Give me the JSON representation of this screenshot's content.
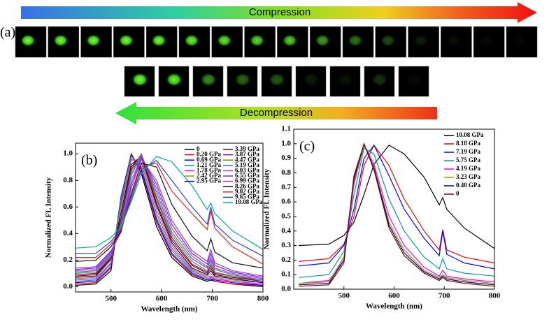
{
  "panel_a": {
    "label": "(a)",
    "top_arrow": "Compression",
    "bottom_arrow": "Decompression"
  },
  "chart_data": [
    {
      "type": "line",
      "panel_label": "(b)",
      "xlabel": "Wavelength (nm)",
      "ylabel": "Normalized FL Intensity",
      "xlim": [
        430,
        800
      ],
      "xticks": [
        500,
        600,
        700,
        800
      ],
      "ylim": [
        -0.04,
        1.08
      ],
      "yticks": [
        {
          "value": 0,
          "label": "0.0"
        },
        0.2,
        0.4,
        0.6,
        0.8,
        {
          "value": 1,
          "label": "1.0"
        }
      ],
      "legend": "upper right",
      "legend_columns": 2,
      "x": [
        430,
        470,
        500,
        520,
        540,
        560,
        590,
        620,
        660,
        690,
        697,
        705,
        740,
        800
      ],
      "series": [
        {
          "name": "0",
          "color": "#000000",
          "values": [
            0.01,
            0.02,
            0.12,
            0.65,
            1.0,
            0.85,
            0.45,
            0.22,
            0.08,
            0.04,
            0.05,
            0.04,
            0.02,
            0.0
          ]
        },
        {
          "name": "0.20 GPa",
          "color": "#ff0000",
          "values": [
            0.02,
            0.03,
            0.14,
            0.68,
            1.0,
            0.87,
            0.48,
            0.24,
            0.09,
            0.05,
            0.06,
            0.04,
            0.02,
            0.01
          ]
        },
        {
          "name": "0.69 GPa",
          "color": "#0000ff",
          "values": [
            0.03,
            0.04,
            0.15,
            0.68,
            0.99,
            0.88,
            0.5,
            0.25,
            0.1,
            0.05,
            0.06,
            0.05,
            0.03,
            0.01
          ]
        },
        {
          "name": "1.21 GPa",
          "color": "#00a0a0",
          "values": [
            0.04,
            0.05,
            0.17,
            0.66,
            0.98,
            0.9,
            0.52,
            0.27,
            0.11,
            0.06,
            0.07,
            0.06,
            0.04,
            0.02
          ]
        },
        {
          "name": "1.78 GPa",
          "color": "#ff00ff",
          "values": [
            0.05,
            0.06,
            0.18,
            0.62,
            0.96,
            0.93,
            0.55,
            0.29,
            0.12,
            0.07,
            0.08,
            0.06,
            0.04,
            0.02
          ]
        },
        {
          "name": "2.42 GPa",
          "color": "#999900",
          "values": [
            0.06,
            0.07,
            0.2,
            0.6,
            0.95,
            0.96,
            0.58,
            0.31,
            0.13,
            0.08,
            0.1,
            0.07,
            0.05,
            0.03
          ]
        },
        {
          "name": "2.95 GPa",
          "color": "#000080",
          "values": [
            0.07,
            0.08,
            0.21,
            0.56,
            0.92,
            0.98,
            0.61,
            0.33,
            0.14,
            0.09,
            0.12,
            0.08,
            0.06,
            0.03
          ]
        },
        {
          "name": "3.39 GPa",
          "color": "#800000",
          "values": [
            0.08,
            0.09,
            0.22,
            0.52,
            0.9,
            0.99,
            0.63,
            0.35,
            0.16,
            0.1,
            0.14,
            0.09,
            0.07,
            0.04
          ]
        },
        {
          "name": "3.87 GPa",
          "color": "#990099",
          "values": [
            0.09,
            0.1,
            0.22,
            0.5,
            0.88,
            1.0,
            0.66,
            0.37,
            0.17,
            0.11,
            0.16,
            0.1,
            0.08,
            0.04
          ]
        },
        {
          "name": "4.47 GPa",
          "color": "#669900",
          "values": [
            0.1,
            0.11,
            0.23,
            0.48,
            0.86,
            1.0,
            0.68,
            0.39,
            0.19,
            0.12,
            0.18,
            0.11,
            0.08,
            0.05
          ]
        },
        {
          "name": "5.19 GPa",
          "color": "#3366ff",
          "values": [
            0.11,
            0.12,
            0.24,
            0.46,
            0.84,
            0.99,
            0.71,
            0.41,
            0.21,
            0.14,
            0.2,
            0.13,
            0.09,
            0.05
          ]
        },
        {
          "name": "6.03 GPa",
          "color": "#cc33cc",
          "values": [
            0.12,
            0.13,
            0.25,
            0.44,
            0.8,
            0.98,
            0.74,
            0.44,
            0.23,
            0.15,
            0.22,
            0.14,
            0.1,
            0.06
          ]
        },
        {
          "name": "6.55 GPa",
          "color": "#6633cc",
          "values": [
            0.13,
            0.14,
            0.26,
            0.42,
            0.77,
            0.97,
            0.77,
            0.47,
            0.25,
            0.17,
            0.25,
            0.16,
            0.11,
            0.07
          ]
        },
        {
          "name": "6.99 GPa",
          "color": "#9933ff",
          "values": [
            0.14,
            0.15,
            0.27,
            0.41,
            0.74,
            0.96,
            0.8,
            0.5,
            0.27,
            0.19,
            0.28,
            0.18,
            0.12,
            0.08
          ]
        },
        {
          "name": "8.26 GPa",
          "color": "#111111",
          "values": [
            0.19,
            0.2,
            0.3,
            0.42,
            0.7,
            0.93,
            0.9,
            0.62,
            0.38,
            0.27,
            0.36,
            0.26,
            0.18,
            0.14
          ]
        },
        {
          "name": "9.02 GPa",
          "color": "#ee2222",
          "values": [
            0.22,
            0.22,
            0.32,
            0.43,
            0.68,
            0.9,
            0.93,
            0.72,
            0.55,
            0.43,
            0.57,
            0.44,
            0.3,
            0.17
          ]
        },
        {
          "name": "9.65 GPa",
          "color": "#2244ee",
          "values": [
            0.25,
            0.25,
            0.34,
            0.44,
            0.66,
            0.88,
            0.95,
            0.8,
            0.6,
            0.47,
            0.6,
            0.47,
            0.35,
            0.23
          ]
        },
        {
          "name": "10.08 GPa",
          "color": "#00aaaa",
          "values": [
            0.29,
            0.3,
            0.37,
            0.45,
            0.64,
            0.85,
            0.98,
            0.94,
            0.76,
            0.58,
            0.63,
            0.55,
            0.42,
            0.28
          ]
        }
      ]
    },
    {
      "type": "line",
      "panel_label": "(c)",
      "xlabel": "Wavelength (nm)",
      "ylabel": "Normalized FL Intensity",
      "xlim": [
        400,
        800
      ],
      "xticks": [
        500,
        600,
        700,
        800
      ],
      "ylim": [
        0,
        1.1
      ],
      "yticks": [
        {
          "value": 0,
          "label": "0.0"
        },
        0.1,
        0.2,
        0.3,
        0.4,
        0.5,
        0.6,
        0.7,
        0.8,
        0.9,
        {
          "value": 1,
          "label": "1.0"
        },
        1.1
      ],
      "legend": "upper right",
      "legend_columns": 1,
      "x": [
        410,
        470,
        500,
        520,
        540,
        560,
        590,
        620,
        660,
        690,
        697,
        705,
        740,
        800
      ],
      "series": [
        {
          "name": "10.08 GPa",
          "color": "#000000",
          "values": [
            0.3,
            0.31,
            0.37,
            0.46,
            0.65,
            0.86,
            0.99,
            0.93,
            0.77,
            0.58,
            0.63,
            0.55,
            0.42,
            0.28
          ]
        },
        {
          "name": "8.18 GPa",
          "color": "#ff0000",
          "values": [
            0.19,
            0.21,
            0.31,
            0.5,
            0.85,
            0.99,
            0.85,
            0.62,
            0.4,
            0.27,
            0.41,
            0.27,
            0.22,
            0.18
          ]
        },
        {
          "name": "7.19 GPa",
          "color": "#0000ff",
          "values": [
            0.16,
            0.18,
            0.3,
            0.55,
            0.9,
            0.99,
            0.78,
            0.55,
            0.35,
            0.23,
            0.4,
            0.24,
            0.18,
            0.14
          ]
        },
        {
          "name": "5.75 GPa",
          "color": "#00a0a0",
          "values": [
            0.08,
            0.1,
            0.26,
            0.65,
            0.97,
            0.93,
            0.62,
            0.4,
            0.22,
            0.14,
            0.21,
            0.14,
            0.11,
            0.09
          ]
        },
        {
          "name": "4.19 GPa",
          "color": "#ff00ff",
          "values": [
            0.04,
            0.06,
            0.2,
            0.72,
            0.99,
            0.86,
            0.5,
            0.3,
            0.15,
            0.09,
            0.13,
            0.09,
            0.07,
            0.05
          ]
        },
        {
          "name": "3.23 GPa",
          "color": "#999900",
          "values": [
            0.04,
            0.05,
            0.22,
            0.74,
            0.99,
            0.84,
            0.46,
            0.27,
            0.13,
            0.08,
            0.1,
            0.08,
            0.06,
            0.04
          ]
        },
        {
          "name": "0.40 GPa",
          "color": "#000080",
          "values": [
            0.03,
            0.04,
            0.2,
            0.76,
            1.0,
            0.83,
            0.44,
            0.25,
            0.12,
            0.07,
            0.09,
            0.07,
            0.05,
            0.03
          ]
        },
        {
          "name": "0",
          "color": "#800000",
          "values": [
            0.02,
            0.03,
            0.18,
            0.78,
            1.0,
            0.82,
            0.42,
            0.23,
            0.11,
            0.06,
            0.08,
            0.06,
            0.04,
            0.02
          ]
        }
      ]
    }
  ]
}
